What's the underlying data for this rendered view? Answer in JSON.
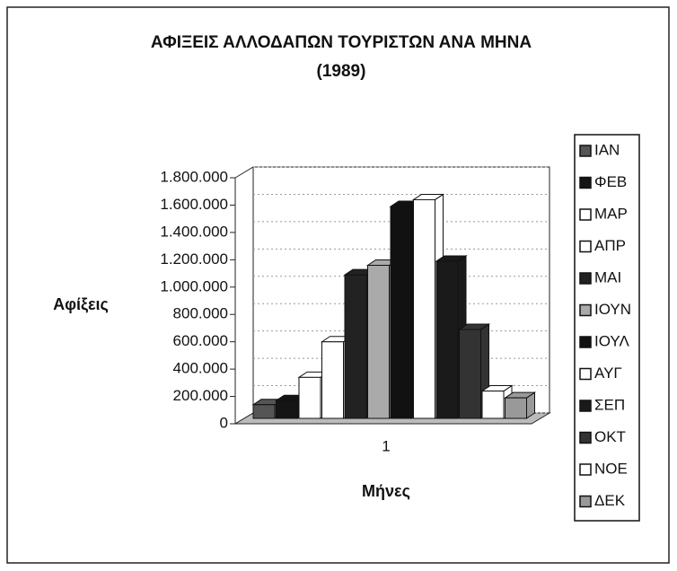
{
  "chart_data": {
    "type": "bar",
    "title": "ΑΦΙΞΕΙΣ ΑΛΛΟΔΑΠΩΝ ΤΟΥΡΙΣΤΩΝ ΑΝΑ ΜΗΝΑ",
    "subtitle": "(1989)",
    "x_label": "Μήνες",
    "y_label": "Αφίξεις",
    "categories": [
      "1"
    ],
    "series": [
      {
        "name": "ΙΑΝ",
        "color": "#555555",
        "values": [
          100000
        ]
      },
      {
        "name": "ΦΕΒ",
        "color": "#151515",
        "values": [
          130000
        ]
      },
      {
        "name": "ΜΑΡ",
        "color": "#ffffff",
        "values": [
          300000
        ]
      },
      {
        "name": "ΑΠΡ",
        "color": "#ffffff",
        "values": [
          560000
        ]
      },
      {
        "name": "ΜΑΙ",
        "color": "#222222",
        "values": [
          1050000
        ]
      },
      {
        "name": "ΙΟΥΝ",
        "color": "#aaaaaa",
        "values": [
          1120000
        ]
      },
      {
        "name": "ΙΟΥΛ",
        "color": "#111111",
        "values": [
          1550000
        ]
      },
      {
        "name": "ΑΥΓ",
        "color": "#ffffff",
        "values": [
          1600000
        ]
      },
      {
        "name": "ΣΕΠ",
        "color": "#1a1a1a",
        "values": [
          1150000
        ]
      },
      {
        "name": "ΟΚΤ",
        "color": "#333333",
        "values": [
          650000
        ]
      },
      {
        "name": "ΝΟΕ",
        "color": "#ffffff",
        "values": [
          200000
        ]
      },
      {
        "name": "ΔΕΚ",
        "color": "#999999",
        "values": [
          150000
        ]
      }
    ],
    "ylim": [
      0,
      1800000
    ],
    "yticks": [
      0,
      {
        "value": 200000,
        "label": "200.000"
      },
      {
        "value": 400000,
        "label": "400.000"
      },
      {
        "value": 600000,
        "label": "600.000"
      },
      {
        "value": 800000,
        "label": "800.000"
      },
      {
        "value": 1000000,
        "label": "1.000.000"
      },
      {
        "value": 1200000,
        "label": "1.200.000"
      },
      {
        "value": 1400000,
        "label": "1.400.000"
      },
      {
        "value": 1600000,
        "label": "1.600.000"
      },
      {
        "value": 1800000,
        "label": "1.800.000"
      }
    ],
    "grid": true,
    "legend": "right"
  }
}
